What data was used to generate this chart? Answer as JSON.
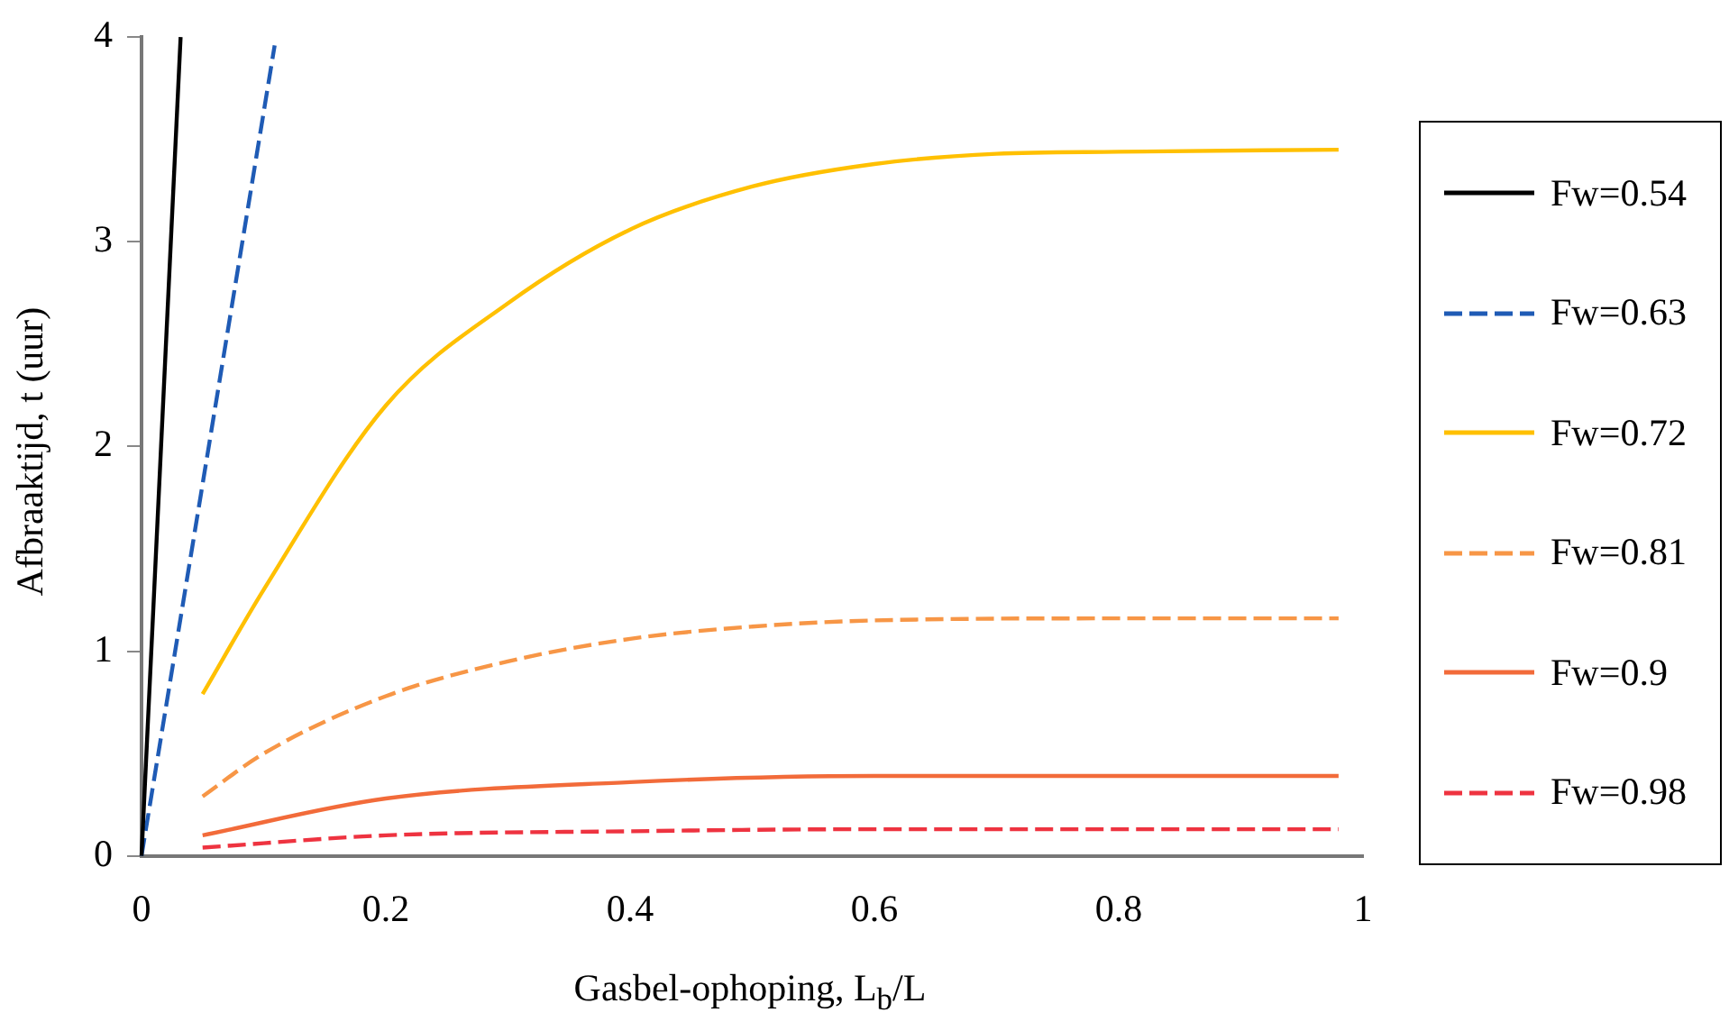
{
  "chart_data": {
    "type": "line",
    "xlabel": "Gasbel-ophoping, L$_{b}$/L",
    "ylabel": "Afbraaktijd, t (uur)",
    "xlim": [
      0,
      1
    ],
    "xticks": [
      0,
      0.2,
      0.4,
      0.6,
      0.8,
      1
    ],
    "ylim": [
      0,
      4
    ],
    "yticks": [
      0,
      1,
      2,
      3,
      4
    ],
    "grid": false,
    "legend": "right",
    "marker": "none",
    "series": [
      {
        "name": "Fw=0.54",
        "color": "#000000",
        "line_style": "solid",
        "x": [
          0,
          0.032
        ],
        "values": [
          0,
          4
        ]
      },
      {
        "name": "Fw=0.63",
        "color": "#1f5bb5",
        "line_style": "dashed",
        "x": [
          0,
          0.109
        ],
        "values": [
          0,
          3.96
        ]
      },
      {
        "name": "Fw=0.72",
        "color": "#ffc000",
        "line_style": "solid",
        "x": [
          0.05,
          0.1,
          0.2,
          0.3,
          0.4,
          0.5,
          0.6,
          0.7,
          0.8,
          0.98
        ],
        "values": [
          0.79,
          1.3,
          2.2,
          2.7,
          3.06,
          3.27,
          3.38,
          3.43,
          3.44,
          3.45
        ]
      },
      {
        "name": "Fw=0.81",
        "color": "#f79646",
        "line_style": "dashed",
        "x": [
          0.05,
          0.1,
          0.2,
          0.3,
          0.4,
          0.5,
          0.6,
          0.8,
          0.98
        ],
        "values": [
          0.29,
          0.5,
          0.78,
          0.95,
          1.06,
          1.12,
          1.15,
          1.16,
          1.16
        ]
      },
      {
        "name": "Fw=0.9",
        "color": "#f26b3a",
        "line_style": "solid",
        "x": [
          0.05,
          0.2,
          0.4,
          0.6,
          0.98
        ],
        "values": [
          0.1,
          0.28,
          0.36,
          0.39,
          0.39
        ]
      },
      {
        "name": "Fw=0.98",
        "color": "#ee3340",
        "line_style": "dashed",
        "x": [
          0.05,
          0.2,
          0.4,
          0.6,
          0.98
        ],
        "values": [
          0.04,
          0.1,
          0.12,
          0.13,
          0.13
        ]
      }
    ]
  }
}
